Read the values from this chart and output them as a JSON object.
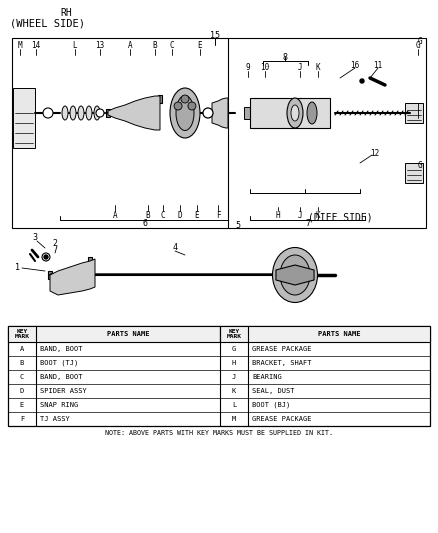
{
  "title_line1": "RH",
  "title_line2": "(WHEEL SIDE)",
  "diff_side_label": "(DIFF SIDE)",
  "bg_color": "#ffffff",
  "border_color": "#000000",
  "text_color": "#000000",
  "table_headers": [
    "KEY\nMARK",
    "PARTS NAME",
    "KEY\nMARK",
    "PARTS NAME"
  ],
  "table_left": [
    [
      "A",
      "BAND, BOOT"
    ],
    [
      "B",
      "BOOT (TJ)"
    ],
    [
      "C",
      "BAND, BOOT"
    ],
    [
      "D",
      "SPIDER ASSY"
    ],
    [
      "E",
      "SNAP RING"
    ],
    [
      "F",
      "TJ ASSY"
    ]
  ],
  "table_right": [
    [
      "G",
      "GREASE PACKAGE"
    ],
    [
      "H",
      "BRACKET, SHAFT"
    ],
    [
      "J",
      "BEARING"
    ],
    [
      "K",
      "SEAL, DUST"
    ],
    [
      "L",
      "BOOT (BJ)"
    ],
    [
      "M",
      "GREASE PACKAGE"
    ]
  ],
  "note": "NOTE: ABOVE PARTS WITH KEY MARKS MUST BE SUPPLIED IN KIT.",
  "fig_width": 4.38,
  "fig_height": 5.33
}
